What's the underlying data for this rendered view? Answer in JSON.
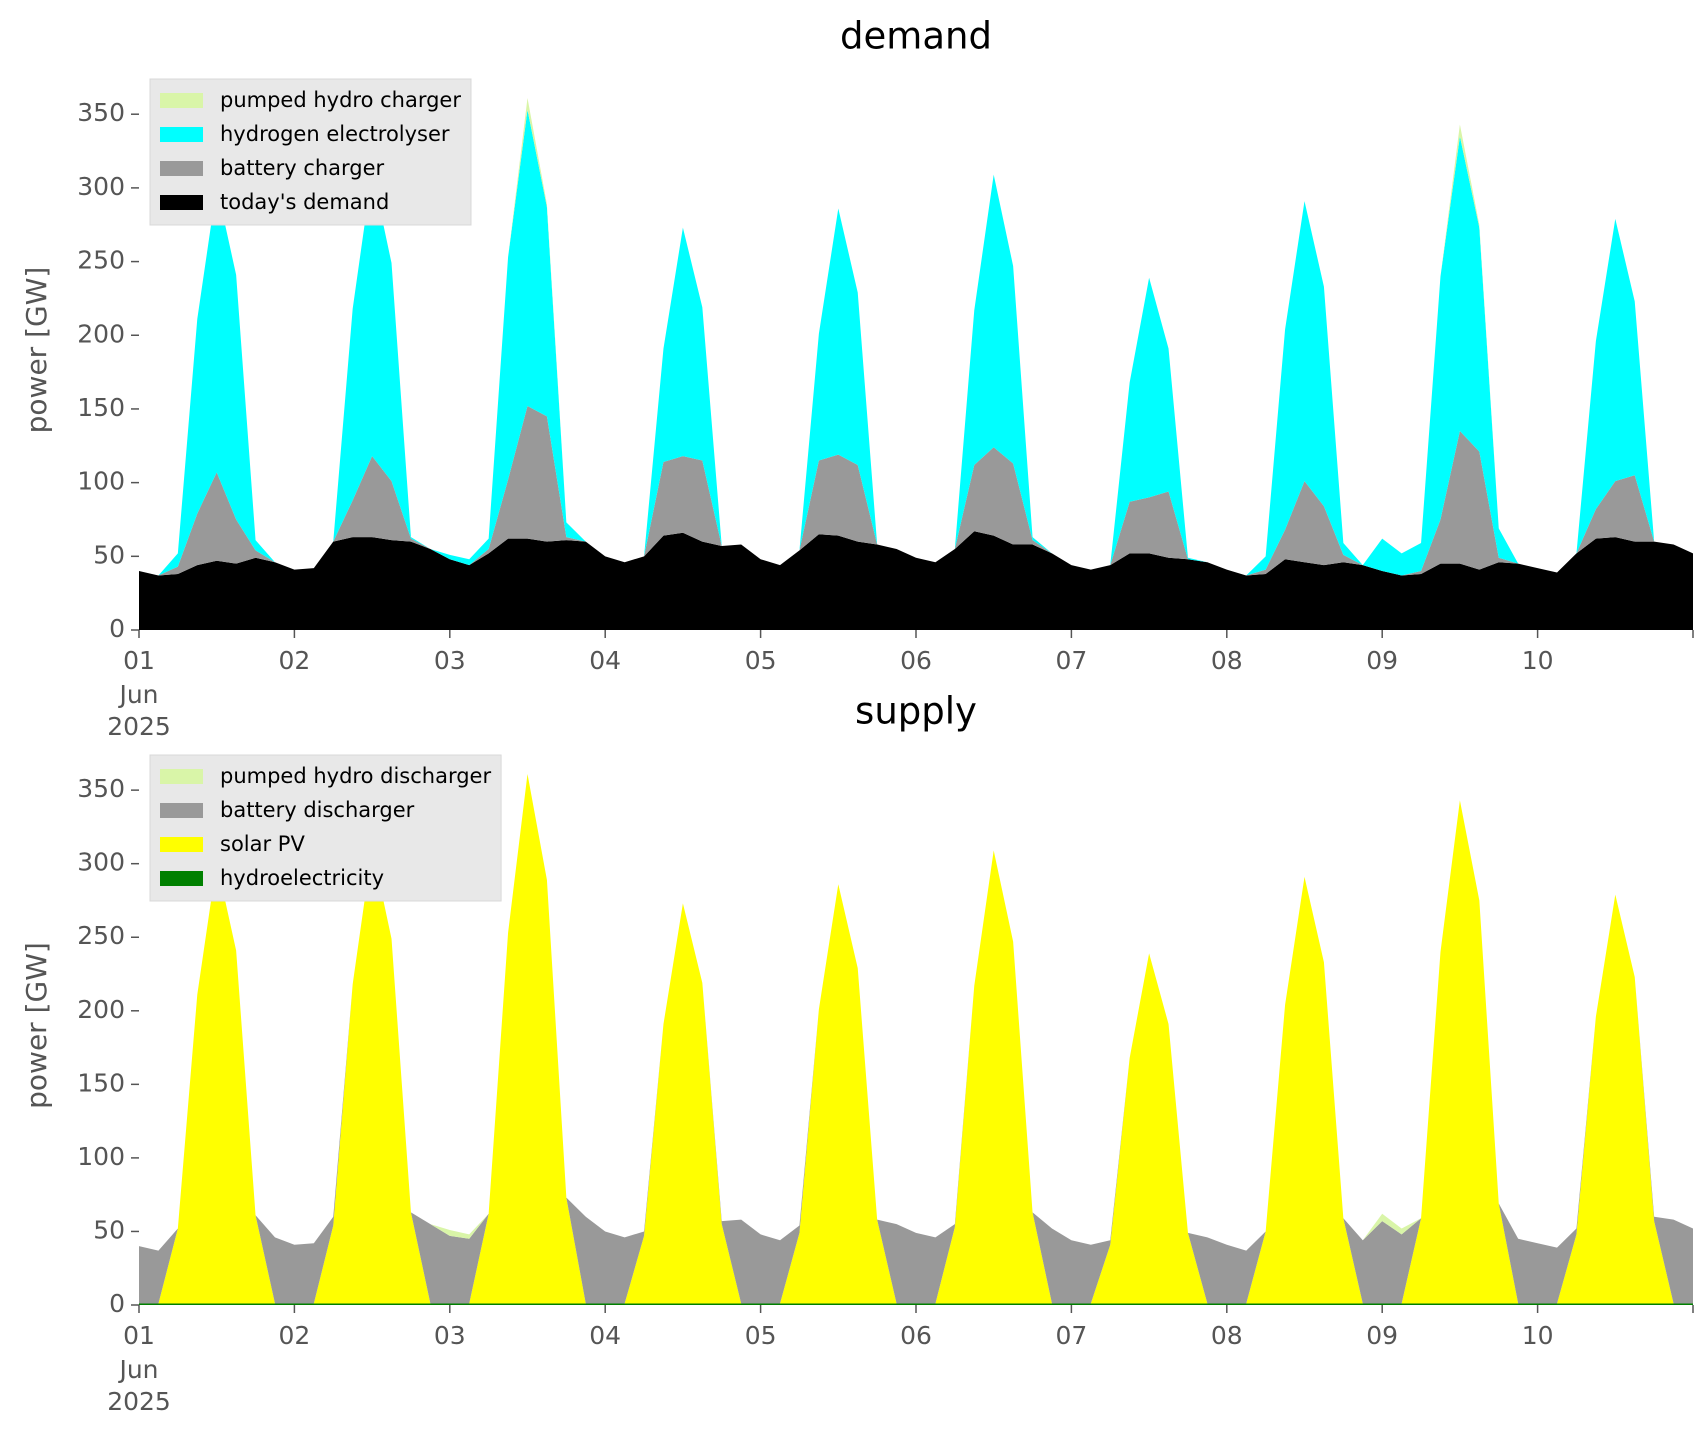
{
  "chart_data": [
    {
      "type": "area",
      "title": "demand",
      "ylabel": "power [GW]",
      "x_month": "Jun",
      "x_year": "2025",
      "x": [
        1,
        1.125,
        1.25,
        1.375,
        1.5,
        1.625,
        1.75,
        1.875,
        2,
        2.125,
        2.25,
        2.375,
        2.5,
        2.625,
        2.75,
        2.875,
        3,
        3.125,
        3.25,
        3.375,
        3.5,
        3.625,
        3.75,
        3.875,
        4,
        4.125,
        4.25,
        4.375,
        4.5,
        4.625,
        4.75,
        4.875,
        5,
        5.125,
        5.25,
        5.375,
        5.5,
        5.625,
        5.75,
        5.875,
        6,
        6.125,
        6.25,
        6.375,
        6.5,
        6.625,
        6.75,
        6.875,
        7,
        7.125,
        7.25,
        7.375,
        7.5,
        7.625,
        7.75,
        7.875,
        8,
        8.125,
        8.25,
        8.375,
        8.5,
        8.625,
        8.75,
        8.875,
        9,
        9.125,
        9.25,
        9.375,
        9.5,
        9.625,
        9.75,
        9.875,
        10,
        10.125,
        10.25,
        10.375,
        10.5,
        10.625,
        10.75,
        10.875,
        11
      ],
      "xlim": [
        1,
        11
      ],
      "xticks": [
        {
          "value": 1,
          "label": "01"
        },
        {
          "value": 2,
          "label": "02"
        },
        {
          "value": 3,
          "label": "03"
        },
        {
          "value": 4,
          "label": "04"
        },
        {
          "value": 5,
          "label": "05"
        },
        {
          "value": 6,
          "label": "06"
        },
        {
          "value": 7,
          "label": "07"
        },
        {
          "value": 8,
          "label": "08"
        },
        {
          "value": 9,
          "label": "09"
        },
        {
          "value": 10,
          "label": "10"
        }
      ],
      "ylim": [
        0,
        380
      ],
      "yticks": [
        0,
        50,
        100,
        150,
        200,
        250,
        300,
        350
      ],
      "stacked": true,
      "legend": "upper left",
      "series": [
        {
          "name": "today's demand",
          "color": "#000000",
          "values": [
            40,
            37,
            38,
            44,
            47,
            45,
            49,
            46,
            41,
            42,
            60,
            63,
            63,
            61,
            60,
            55,
            48,
            44,
            52,
            62,
            62,
            60,
            61,
            60,
            50,
            46,
            50,
            64,
            66,
            60,
            57,
            58,
            48,
            44,
            54,
            65,
            64,
            60,
            58,
            55,
            49,
            46,
            55,
            67,
            64,
            58,
            58,
            52,
            44,
            41,
            44,
            52,
            52,
            49,
            48,
            46,
            41,
            37,
            38,
            48,
            46,
            44,
            46,
            44,
            40,
            37,
            38,
            45,
            45,
            41,
            46,
            45,
            42,
            39,
            52,
            62,
            63,
            60,
            60,
            58,
            52
          ]
        },
        {
          "name": "battery charger",
          "color": "#999999",
          "values": [
            0,
            0,
            5,
            35,
            60,
            30,
            5,
            0,
            0,
            0,
            0,
            25,
            55,
            40,
            2,
            0,
            0,
            0,
            3,
            40,
            90,
            85,
            2,
            0,
            0,
            0,
            0,
            50,
            52,
            55,
            0,
            0,
            0,
            0,
            0,
            50,
            55,
            52,
            0,
            0,
            0,
            0,
            0,
            45,
            60,
            55,
            3,
            0,
            0,
            0,
            0,
            35,
            38,
            45,
            0,
            0,
            0,
            0,
            3,
            20,
            55,
            40,
            5,
            0,
            0,
            0,
            2,
            30,
            90,
            80,
            3,
            0,
            0,
            0,
            0,
            20,
            38,
            45,
            0,
            0,
            0
          ]
        },
        {
          "name": "hydrogen electrolyser",
          "color": "#00ffff",
          "values": [
            0,
            0,
            9,
            132,
            194,
            166,
            7,
            0,
            0,
            0,
            0,
            130,
            193,
            148,
            1,
            0,
            3,
            4,
            7,
            151,
            201,
            142,
            10,
            0,
            0,
            0,
            0,
            77,
            155,
            104,
            0,
            0,
            0,
            0,
            0,
            86,
            167,
            117,
            0,
            0,
            0,
            0,
            0,
            105,
            185,
            134,
            2,
            0,
            0,
            0,
            0,
            81,
            149,
            97,
            1,
            0,
            0,
            0,
            9,
            136,
            190,
            149,
            8,
            0,
            22,
            15,
            19,
            165,
            200,
            152,
            20,
            0,
            0,
            0,
            0,
            114,
            178,
            118,
            0,
            0,
            0
          ]
        },
        {
          "name": "pumped hydro charger",
          "color": "#d9f5a8",
          "values": [
            0,
            0,
            0,
            0,
            0,
            0,
            0,
            0,
            0,
            0,
            0,
            0,
            0,
            0,
            0,
            0,
            0,
            0,
            0,
            0,
            8,
            2,
            0,
            0,
            0,
            0,
            0,
            0,
            0,
            0,
            0,
            0,
            0,
            0,
            0,
            0,
            0,
            0,
            0,
            0,
            0,
            0,
            0,
            0,
            0,
            0,
            0,
            0,
            0,
            0,
            0,
            0,
            0,
            0,
            0,
            0,
            0,
            0,
            0,
            0,
            0,
            0,
            0,
            0,
            0,
            0,
            0,
            0,
            8,
            2,
            0,
            0,
            0,
            0,
            0,
            0,
            0,
            0,
            0,
            0,
            0
          ]
        }
      ]
    },
    {
      "type": "area",
      "title": "supply",
      "ylabel": "power [GW]",
      "x_month": "Jun",
      "x_year": "2025",
      "x": [
        1,
        1.125,
        1.25,
        1.375,
        1.5,
        1.625,
        1.75,
        1.875,
        2,
        2.125,
        2.25,
        2.375,
        2.5,
        2.625,
        2.75,
        2.875,
        3,
        3.125,
        3.25,
        3.375,
        3.5,
        3.625,
        3.75,
        3.875,
        4,
        4.125,
        4.25,
        4.375,
        4.5,
        4.625,
        4.75,
        4.875,
        5,
        5.125,
        5.25,
        5.375,
        5.5,
        5.625,
        5.75,
        5.875,
        6,
        6.125,
        6.25,
        6.375,
        6.5,
        6.625,
        6.75,
        6.875,
        7,
        7.125,
        7.25,
        7.375,
        7.5,
        7.625,
        7.75,
        7.875,
        8,
        8.125,
        8.25,
        8.375,
        8.5,
        8.625,
        8.75,
        8.875,
        9,
        9.125,
        9.25,
        9.375,
        9.5,
        9.625,
        9.75,
        9.875,
        10,
        10.125,
        10.25,
        10.375,
        10.5,
        10.625,
        10.75,
        10.875,
        11
      ],
      "xlim": [
        1,
        11
      ],
      "xticks": [
        {
          "value": 1,
          "label": "01"
        },
        {
          "value": 2,
          "label": "02"
        },
        {
          "value": 3,
          "label": "03"
        },
        {
          "value": 4,
          "label": "04"
        },
        {
          "value": 5,
          "label": "05"
        },
        {
          "value": 6,
          "label": "06"
        },
        {
          "value": 7,
          "label": "07"
        },
        {
          "value": 8,
          "label": "08"
        },
        {
          "value": 9,
          "label": "09"
        },
        {
          "value": 10,
          "label": "10"
        }
      ],
      "ylim": [
        0,
        380
      ],
      "yticks": [
        0,
        50,
        100,
        150,
        200,
        250,
        300,
        350
      ],
      "stacked": true,
      "legend": "upper left",
      "series": [
        {
          "name": "hydroelectricity",
          "color": "#008000",
          "values": [
            1,
            1,
            1,
            1,
            1,
            1,
            1,
            1,
            1,
            1,
            1,
            1,
            1,
            1,
            1,
            1,
            1,
            1,
            1,
            1,
            1,
            1,
            1,
            1,
            1,
            1,
            1,
            1,
            1,
            1,
            1,
            1,
            1,
            1,
            1,
            1,
            1,
            1,
            1,
            1,
            1,
            1,
            1,
            1,
            1,
            1,
            1,
            1,
            1,
            1,
            1,
            1,
            1,
            1,
            1,
            1,
            1,
            1,
            1,
            1,
            1,
            1,
            1,
            1,
            1,
            1,
            1,
            1,
            1,
            1,
            1,
            1,
            1,
            1,
            1,
            1,
            1,
            1,
            1,
            1,
            1
          ]
        },
        {
          "name": "solar PV",
          "color": "#ffff00",
          "values": [
            0,
            0,
            51,
            210,
            300,
            240,
            60,
            0,
            0,
            0,
            53,
            217,
            310,
            248,
            62,
            0,
            0,
            0,
            61,
            252,
            360,
            288,
            72,
            0,
            0,
            0,
            46,
            190,
            272,
            218,
            54,
            0,
            0,
            0,
            48,
            200,
            285,
            228,
            57,
            0,
            0,
            0,
            52,
            216,
            308,
            246,
            62,
            0,
            0,
            0,
            40,
            167,
            238,
            190,
            48,
            0,
            0,
            0,
            49,
            203,
            290,
            232,
            58,
            0,
            0,
            0,
            58,
            239,
            342,
            274,
            68,
            0,
            0,
            0,
            47,
            195,
            278,
            222,
            56,
            0,
            0
          ]
        },
        {
          "name": "battery discharger",
          "color": "#999999",
          "values": [
            39,
            36,
            0,
            0,
            0,
            0,
            0,
            45,
            40,
            41,
            6,
            0,
            0,
            0,
            0,
            54,
            46,
            44,
            0,
            0,
            0,
            0,
            0,
            59,
            49,
            45,
            3,
            0,
            0,
            0,
            2,
            57,
            47,
            43,
            5,
            0,
            0,
            0,
            0,
            54,
            48,
            45,
            2,
            0,
            0,
            0,
            0,
            51,
            43,
            40,
            3,
            0,
            0,
            0,
            0,
            45,
            40,
            36,
            0,
            0,
            0,
            0,
            0,
            43,
            56,
            47,
            0,
            0,
            0,
            0,
            0,
            44,
            41,
            38,
            4,
            0,
            0,
            0,
            3,
            57,
            51
          ]
        },
        {
          "name": "pumped hydro discharger",
          "color": "#d9f5a8",
          "values": [
            0,
            0,
            0,
            0,
            0,
            0,
            0,
            0,
            0,
            0,
            0,
            0,
            0,
            0,
            0,
            0,
            4,
            3,
            0,
            0,
            0,
            0,
            0,
            0,
            0,
            0,
            0,
            0,
            0,
            0,
            0,
            0,
            0,
            0,
            0,
            0,
            0,
            0,
            0,
            0,
            0,
            0,
            0,
            0,
            0,
            0,
            0,
            0,
            0,
            0,
            0,
            0,
            0,
            0,
            0,
            0,
            0,
            0,
            0,
            0,
            0,
            0,
            0,
            0,
            5,
            4,
            0,
            0,
            0,
            0,
            0,
            0,
            0,
            0,
            0,
            0,
            0,
            0,
            0,
            0,
            0
          ]
        }
      ]
    }
  ]
}
